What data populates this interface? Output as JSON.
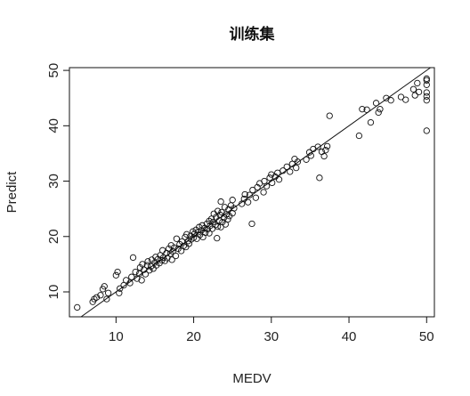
{
  "chart_data": {
    "type": "scatter",
    "title": "训练集",
    "xlabel": "MEDV",
    "ylabel": "Predict",
    "xlim": [
      4,
      51
    ],
    "ylim": [
      5.5,
      50.5
    ],
    "x_ticks": [
      10,
      20,
      30,
      40,
      50
    ],
    "y_ticks": [
      10,
      20,
      30,
      40,
      50
    ],
    "grid": false,
    "reference_line": {
      "slope": 1,
      "intercept": 0
    },
    "series": [
      {
        "points": [
          [
            5.0,
            7.2
          ],
          [
            7.0,
            8.2
          ],
          [
            7.2,
            8.7
          ],
          [
            7.5,
            9.0
          ],
          [
            8.0,
            9.4
          ],
          [
            8.3,
            10.5
          ],
          [
            8.5,
            11.0
          ],
          [
            8.8,
            8.7
          ],
          [
            9.0,
            9.8
          ],
          [
            10.0,
            13.0
          ],
          [
            10.2,
            13.6
          ],
          [
            10.4,
            9.8
          ],
          [
            10.5,
            10.6
          ],
          [
            11.0,
            11.2
          ],
          [
            11.3,
            12.1
          ],
          [
            11.8,
            11.6
          ],
          [
            12.0,
            12.7
          ],
          [
            12.2,
            16.2
          ],
          [
            12.5,
            13.6
          ],
          [
            12.7,
            12.4
          ],
          [
            13.0,
            13.3
          ],
          [
            13.1,
            14.4
          ],
          [
            13.3,
            12.1
          ],
          [
            13.4,
            15.0
          ],
          [
            13.6,
            14.0
          ],
          [
            13.8,
            13.2
          ],
          [
            14.0,
            14.8
          ],
          [
            14.1,
            15.5
          ],
          [
            14.3,
            13.9
          ],
          [
            14.5,
            14.6
          ],
          [
            14.6,
            15.8
          ],
          [
            14.8,
            14.2
          ],
          [
            15.0,
            15.3
          ],
          [
            15.1,
            16.3
          ],
          [
            15.2,
            14.8
          ],
          [
            15.4,
            15.9
          ],
          [
            15.6,
            15.2
          ],
          [
            15.7,
            16.6
          ],
          [
            15.9,
            15.7
          ],
          [
            16.0,
            17.5
          ],
          [
            16.1,
            16.2
          ],
          [
            16.3,
            15.6
          ],
          [
            16.5,
            17.0
          ],
          [
            16.6,
            16.1
          ],
          [
            16.8,
            17.8
          ],
          [
            17.0,
            16.9
          ],
          [
            17.1,
            18.4
          ],
          [
            17.2,
            15.8
          ],
          [
            17.3,
            17.3
          ],
          [
            17.5,
            18.0
          ],
          [
            17.7,
            16.5
          ],
          [
            17.8,
            19.6
          ],
          [
            18.0,
            17.8
          ],
          [
            18.2,
            18.6
          ],
          [
            18.4,
            17.4
          ],
          [
            18.5,
            19.1
          ],
          [
            18.7,
            18.3
          ],
          [
            18.9,
            19.9
          ],
          [
            19.0,
            18.1
          ],
          [
            19.1,
            20.4
          ],
          [
            19.3,
            19.2
          ],
          [
            19.4,
            18.7
          ],
          [
            19.6,
            20.1
          ],
          [
            19.7,
            19.5
          ],
          [
            19.9,
            20.9
          ],
          [
            20.0,
            19.8
          ],
          [
            20.1,
            20.5
          ],
          [
            20.3,
            21.2
          ],
          [
            20.4,
            19.6
          ],
          [
            20.6,
            20.8
          ],
          [
            20.7,
            21.7
          ],
          [
            20.8,
            20.3
          ],
          [
            21.0,
            21.1
          ],
          [
            21.1,
            22.0
          ],
          [
            21.2,
            19.9
          ],
          [
            21.4,
            21.5
          ],
          [
            21.5,
            20.7
          ],
          [
            21.7,
            22.3
          ],
          [
            21.8,
            21.3
          ],
          [
            22.0,
            22.8
          ],
          [
            22.0,
            20.6
          ],
          [
            22.1,
            21.9
          ],
          [
            22.3,
            23.2
          ],
          [
            22.4,
            21.4
          ],
          [
            22.5,
            22.6
          ],
          [
            22.6,
            24.1
          ],
          [
            22.8,
            22.1
          ],
          [
            22.9,
            23.5
          ],
          [
            23.0,
            19.7
          ],
          [
            23.1,
            21.8
          ],
          [
            23.1,
            24.6
          ],
          [
            23.3,
            22.9
          ],
          [
            23.4,
            23.9
          ],
          [
            23.5,
            21.7
          ],
          [
            23.6,
            24.4
          ],
          [
            23.7,
            22.6
          ],
          [
            23.9,
            23.4
          ],
          [
            24.0,
            25.3
          ],
          [
            24.1,
            22.2
          ],
          [
            24.2,
            24.0
          ],
          [
            24.4,
            23.1
          ],
          [
            24.5,
            24.9
          ],
          [
            24.6,
            23.7
          ],
          [
            24.8,
            25.6
          ],
          [
            25.0,
            24.2
          ],
          [
            25.0,
            26.6
          ],
          [
            25.2,
            25.1
          ],
          [
            23.5,
            26.3
          ],
          [
            26.2,
            25.9
          ],
          [
            26.5,
            26.8
          ],
          [
            26.6,
            27.6
          ],
          [
            27.0,
            26.2
          ],
          [
            27.2,
            27.5
          ],
          [
            27.5,
            22.3
          ],
          [
            27.6,
            28.4
          ],
          [
            28.0,
            27.0
          ],
          [
            28.2,
            28.9
          ],
          [
            28.5,
            29.6
          ],
          [
            29.0,
            28.0
          ],
          [
            29.1,
            30.0
          ],
          [
            29.4,
            29.1
          ],
          [
            29.8,
            30.6
          ],
          [
            30.0,
            31.2
          ],
          [
            30.1,
            29.7
          ],
          [
            30.5,
            30.8
          ],
          [
            30.8,
            31.5
          ],
          [
            31.0,
            30.3
          ],
          [
            31.5,
            31.9
          ],
          [
            32.0,
            32.6
          ],
          [
            32.4,
            31.7
          ],
          [
            32.7,
            33.1
          ],
          [
            33.0,
            34.0
          ],
          [
            33.2,
            32.4
          ],
          [
            33.4,
            33.5
          ],
          [
            34.5,
            33.9
          ],
          [
            34.9,
            35.2
          ],
          [
            35.1,
            34.6
          ],
          [
            35.4,
            35.8
          ],
          [
            36.0,
            36.2
          ],
          [
            36.2,
            30.6
          ],
          [
            36.5,
            35.3
          ],
          [
            36.8,
            34.5
          ],
          [
            37.0,
            35.6
          ],
          [
            37.2,
            36.3
          ],
          [
            37.5,
            41.8
          ],
          [
            41.3,
            38.2
          ],
          [
            41.7,
            43.0
          ],
          [
            42.3,
            42.9
          ],
          [
            42.8,
            40.6
          ],
          [
            43.5,
            44.1
          ],
          [
            43.8,
            42.4
          ],
          [
            44.0,
            43.0
          ],
          [
            44.8,
            45.0
          ],
          [
            45.4,
            44.6
          ],
          [
            46.7,
            45.2
          ],
          [
            47.3,
            44.7
          ],
          [
            48.3,
            46.6
          ],
          [
            48.5,
            45.5
          ],
          [
            48.8,
            47.7
          ],
          [
            49.0,
            46.1
          ],
          [
            50.0,
            48.5
          ],
          [
            50.0,
            48.2
          ],
          [
            50.0,
            47.4
          ],
          [
            50.0,
            46.0
          ],
          [
            50.0,
            45.3
          ],
          [
            50.0,
            44.6
          ],
          [
            50.0,
            39.1
          ]
        ]
      }
    ]
  }
}
